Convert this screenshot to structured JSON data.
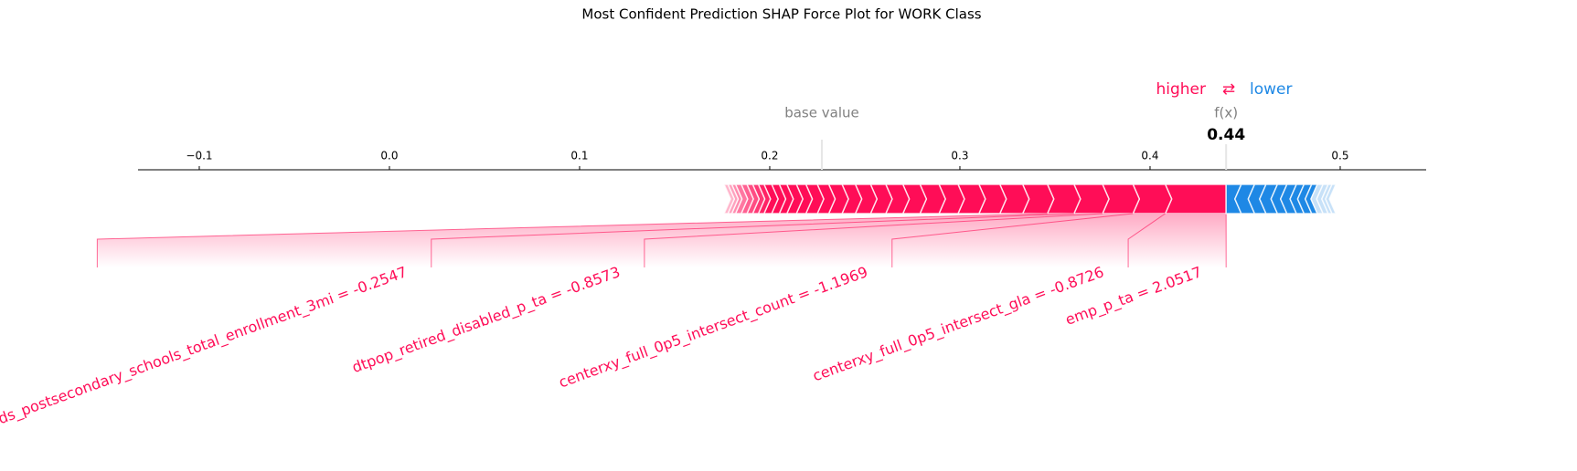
{
  "chart_data": {
    "type": "force",
    "title": "Most Confident Prediction SHAP Force Plot for WORK Class",
    "legend": {
      "higher": "higher",
      "arrow": "⇄",
      "lower": "lower"
    },
    "base_value_label": "base value",
    "base_value": 0.2274,
    "output_label": "f(x)",
    "output_value": 0.44,
    "xlim": [
      -0.1322,
      0.5452
    ],
    "xticks": [
      {
        "value": -0.1,
        "label": "−0.1"
      },
      {
        "value": 0,
        "label": "0.0"
      },
      0.1,
      0.2,
      0.3,
      0.4,
      0.5
    ],
    "positive_color": "#ff0d57",
    "negative_color": "#1e88e5",
    "positive_features": {
      "labels": [
        "emp_p_ta = 2.0517",
        "centerxy_full_0p5_intersect_gla = -0.8726",
        "centerxy_full_0p5_intersect_count = -1.1969",
        "dtpop_retired_disabled_p_ta = -0.8573",
        "ipeds_postsecondary_schools_total_enrollment_3mi = -0.2547",
        null,
        null,
        null,
        null,
        null,
        null,
        null,
        null,
        null,
        null,
        null,
        null,
        null,
        null,
        null,
        null,
        null,
        null,
        null,
        null,
        null,
        null,
        null,
        null,
        null,
        null,
        null
      ],
      "values": [
        0.032,
        0.017,
        0.016,
        0.015,
        0.014,
        0.013,
        0.012,
        0.011,
        0.011,
        0.01,
        0.01,
        0.009,
        0.009,
        0.008,
        0.008,
        0.007,
        0.007,
        0.006,
        0.006,
        0.005,
        0.005,
        0.004,
        0.004,
        0.004,
        0.003,
        0.003,
        0.003,
        0.003,
        0.003,
        0.002,
        0.002,
        0.002
      ]
    },
    "negative_features": {
      "values": [
        -0.008,
        -0.007,
        -0.006,
        -0.006,
        -0.005,
        -0.005,
        -0.004,
        -0.004,
        -0.003,
        -0.003,
        -0.0027,
        -0.002,
        -0.002
      ]
    }
  }
}
